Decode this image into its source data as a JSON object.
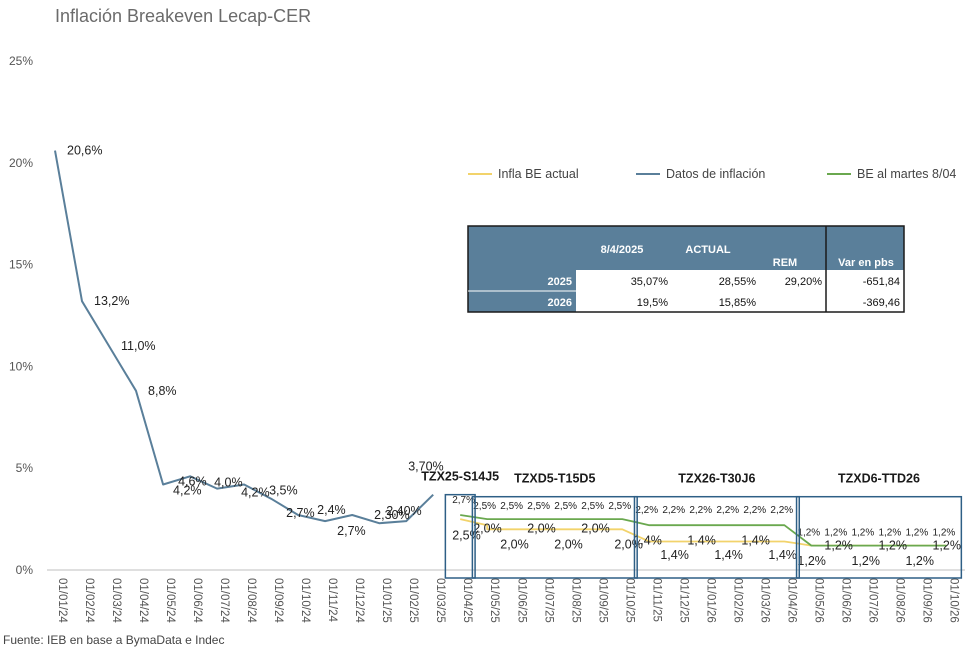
{
  "chart_data": {
    "type": "line",
    "title": "Inflación Breakeven Lecap-CER",
    "source": "Fuente: IEB en base a BymaData e Indec",
    "ylim": [
      0,
      25
    ],
    "yticks": [
      "0%",
      "5%",
      "10%",
      "15%",
      "20%",
      "25%"
    ],
    "ytick_values": [
      0,
      5,
      10,
      15,
      20,
      25
    ],
    "categories": [
      "01/01/24",
      "01/02/24",
      "01/03/24",
      "01/04/24",
      "01/05/24",
      "01/06/24",
      "01/07/24",
      "01/08/24",
      "01/09/24",
      "01/10/24",
      "01/11/24",
      "01/12/24",
      "01/01/25",
      "01/02/25",
      "01/03/25",
      "01/04/25",
      "01/05/25",
      "01/06/25",
      "01/07/25",
      "01/08/25",
      "01/09/25",
      "01/10/25",
      "01/11/25",
      "01/12/25",
      "01/01/26",
      "01/02/26",
      "01/03/26",
      "01/04/26",
      "01/05/26",
      "01/06/26",
      "01/07/26",
      "01/08/26",
      "01/09/26",
      "01/10/26"
    ],
    "series": [
      {
        "name": "Datos de inflación",
        "color": "#5a7f9a",
        "x": [
          0,
          1,
          2,
          3,
          4,
          5,
          6,
          7,
          8,
          9,
          10,
          11,
          12,
          13,
          14
        ],
        "values": [
          20.6,
          13.2,
          11.0,
          8.8,
          4.2,
          4.6,
          4.0,
          4.2,
          3.5,
          2.7,
          2.4,
          2.7,
          2.3,
          2.4,
          3.7
        ],
        "labels": [
          "20,6%",
          "13,2%",
          "11,0%",
          "8,8%",
          "4,2%",
          "4,6%",
          "4,0%",
          "4,2%",
          "3,5%",
          "2,7%",
          "2,4%",
          "2,7%",
          "2,30%",
          "2,40%",
          "3,70%"
        ]
      },
      {
        "name": "Infla BE actual",
        "color": "#f2d36b",
        "x": [
          15,
          16,
          16,
          17,
          18,
          19,
          20,
          21,
          21.5,
          22,
          23,
          24,
          25,
          26,
          27,
          27.5,
          28,
          29,
          30,
          31,
          32,
          33
        ],
        "values": [
          2.5,
          2.2,
          2.0,
          2.0,
          2.0,
          2.0,
          2.0,
          2.0,
          1.7,
          1.4,
          1.4,
          1.4,
          1.4,
          1.4,
          1.4,
          1.3,
          1.2,
          1.2,
          1.2,
          1.2,
          1.2,
          1.2
        ]
      },
      {
        "name": "BE al martes 8/04",
        "color": "#6aa84f",
        "x": [
          15,
          16,
          17,
          18,
          19,
          20,
          21,
          22,
          23,
          24,
          25,
          26,
          27,
          28,
          29,
          30,
          31,
          32,
          33
        ],
        "values": [
          2.7,
          2.5,
          2.5,
          2.5,
          2.5,
          2.5,
          2.5,
          2.2,
          2.2,
          2.2,
          2.2,
          2.2,
          2.2,
          1.2,
          1.2,
          1.2,
          1.2,
          1.2,
          1.2
        ]
      }
    ],
    "series_label_points": [
      {
        "x": 15,
        "text": "2,7%",
        "series": "BE al martes 8/04"
      },
      {
        "x": 15,
        "text": "2,5%",
        "series": "Infla BE actual"
      },
      {
        "x": 16,
        "text": "2,5%"
      },
      {
        "x": 17,
        "text": "2,5%"
      },
      {
        "x": 18,
        "text": "2,5%"
      },
      {
        "x": 19,
        "text": "2,5%"
      },
      {
        "x": 20,
        "text": "2,5%"
      },
      {
        "x": 21,
        "text": "2,5%"
      },
      {
        "x": 16,
        "text": "2,0%"
      },
      {
        "x": 17,
        "text": "2,0%"
      },
      {
        "x": 18,
        "text": "2,0%"
      },
      {
        "x": 19,
        "text": "2,0%"
      },
      {
        "x": 20,
        "text": "2,0%"
      },
      {
        "x": 21,
        "text": "2,0%"
      },
      {
        "x": 22,
        "text": "2,2%"
      },
      {
        "x": 23,
        "text": "2,2%"
      },
      {
        "x": 24,
        "text": "2,2%"
      },
      {
        "x": 25,
        "text": "2,2%"
      },
      {
        "x": 26,
        "text": "2,2%"
      },
      {
        "x": 27,
        "text": "2,2%"
      },
      {
        "x": 22,
        "text": "1,4%"
      },
      {
        "x": 23,
        "text": "1,4%"
      },
      {
        "x": 24,
        "text": "1,4%"
      },
      {
        "x": 25,
        "text": "1,4%"
      },
      {
        "x": 26,
        "text": "1,4%"
      },
      {
        "x": 27,
        "text": "1,4%"
      },
      {
        "x": 28,
        "text": "1,2%"
      },
      {
        "x": 29,
        "text": "1,2%"
      },
      {
        "x": 30,
        "text": "1,2%"
      },
      {
        "x": 31,
        "text": "1,2%"
      },
      {
        "x": 32,
        "text": "1,2%"
      },
      {
        "x": 33,
        "text": "1,2%"
      },
      {
        "x": 28,
        "text": "1,2%"
      },
      {
        "x": 29,
        "text": "1,2%"
      },
      {
        "x": 30,
        "text": "1,2%"
      },
      {
        "x": 31,
        "text": "1,2%"
      },
      {
        "x": 32,
        "text": "1,2%"
      },
      {
        "x": 33,
        "text": "1,2%"
      }
    ],
    "segments": [
      {
        "label": "TZX25-S14J5",
        "x_start": 15,
        "x_end": 15
      },
      {
        "label": "TZXD5-T15D5",
        "x_start": 16,
        "x_end": 21
      },
      {
        "label": "TZX26-T30J6",
        "x_start": 22,
        "x_end": 27
      },
      {
        "label": "TZXD6-TTD26",
        "x_start": 28,
        "x_end": 33
      }
    ],
    "legend": {
      "placement": "top-right",
      "items": [
        {
          "label": "Infla BE actual",
          "color": "#f2d36b"
        },
        {
          "label": "Datos de inflación",
          "color": "#5a7f9a"
        },
        {
          "label": "BE al martes 8/04",
          "color": "#6aa84f"
        }
      ]
    },
    "table": {
      "header_color": "#5a7f9a",
      "columns": [
        "",
        "8/4/2025",
        "ACTUAL",
        "REM",
        "Var en pbs"
      ],
      "rows": [
        {
          "label": "2025",
          "cells": [
            "35,07%",
            "28,55%",
            "29,20%",
            "-651,84"
          ]
        },
        {
          "label": "2026",
          "cells": [
            "19,5%",
            "15,85%",
            "",
            "-369,46"
          ]
        }
      ]
    }
  }
}
